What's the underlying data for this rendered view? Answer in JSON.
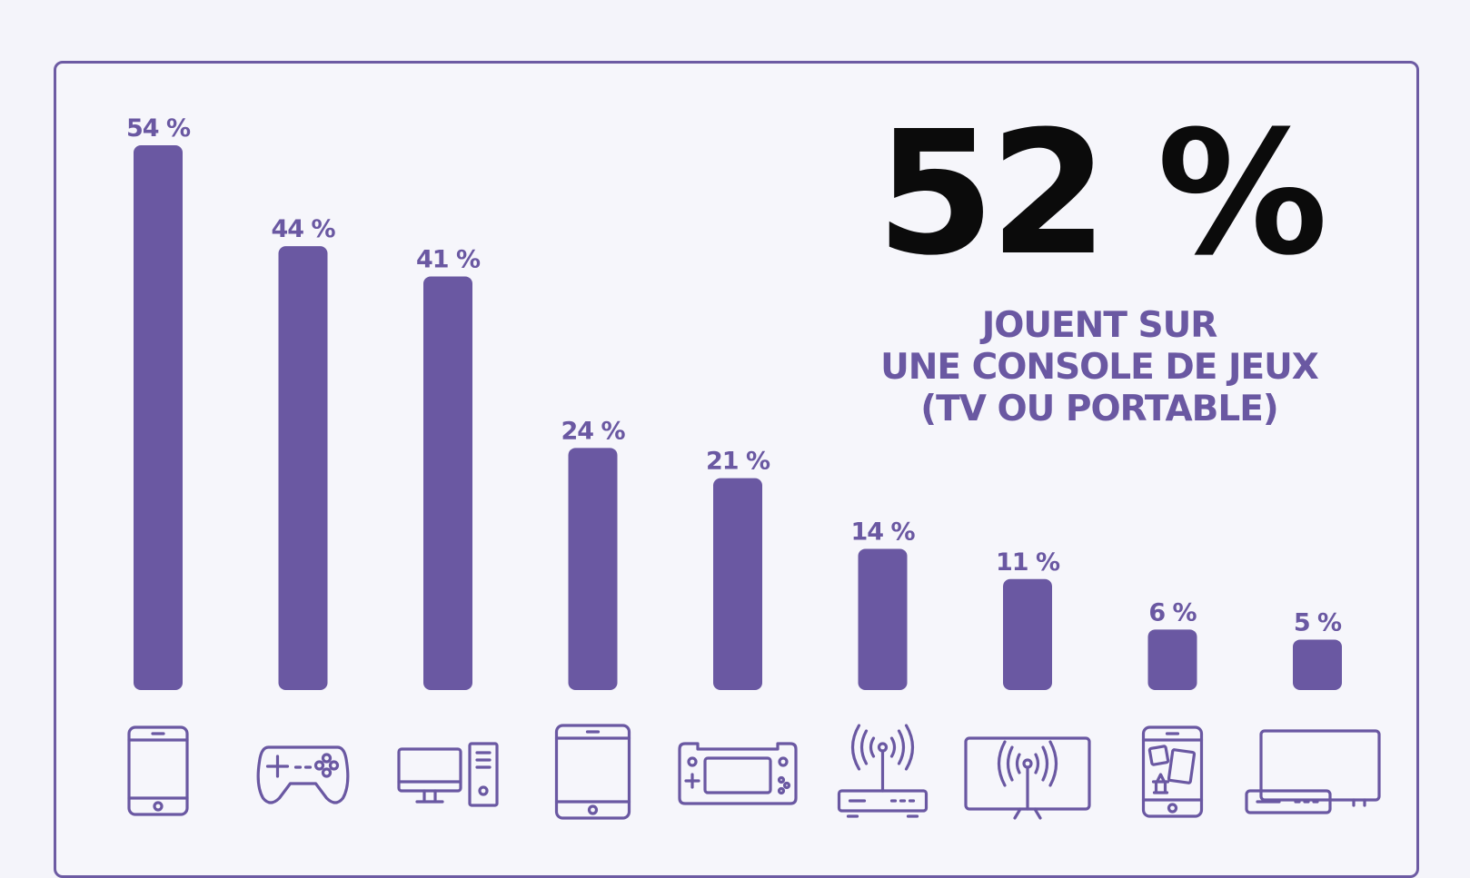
{
  "headline": {
    "stat": "52 %",
    "lines": [
      "JOUENT SUR",
      "UNE CONSOLE DE JEUX",
      "(TV OU PORTABLE)"
    ]
  },
  "colors": {
    "bar": "#6a58a2",
    "frame": "#6d5ba3",
    "stat": "#0b0b0b",
    "background": "#f4f4fa"
  },
  "chart_data": {
    "type": "bar",
    "ylim": [
      0,
      54
    ],
    "grid": false,
    "categories": [
      {
        "icon": "smartphone-icon",
        "value": 54,
        "label": "54 %"
      },
      {
        "icon": "gamepad-icon",
        "value": 44,
        "label": "44 %"
      },
      {
        "icon": "desktop-computer-icon",
        "value": 41,
        "label": "41 %"
      },
      {
        "icon": "tablet-icon",
        "value": 24,
        "label": "24 %"
      },
      {
        "icon": "handheld-console-icon",
        "value": 21,
        "label": "21 %"
      },
      {
        "icon": "router-box-icon",
        "value": 14,
        "label": "14 %"
      },
      {
        "icon": "connected-tv-icon",
        "value": 11,
        "label": "11 %"
      },
      {
        "icon": "phone-board-games-icon",
        "value": 6,
        "label": "6 %"
      },
      {
        "icon": "tv-set-top-box-icon",
        "value": 5,
        "label": "5 %"
      }
    ]
  }
}
